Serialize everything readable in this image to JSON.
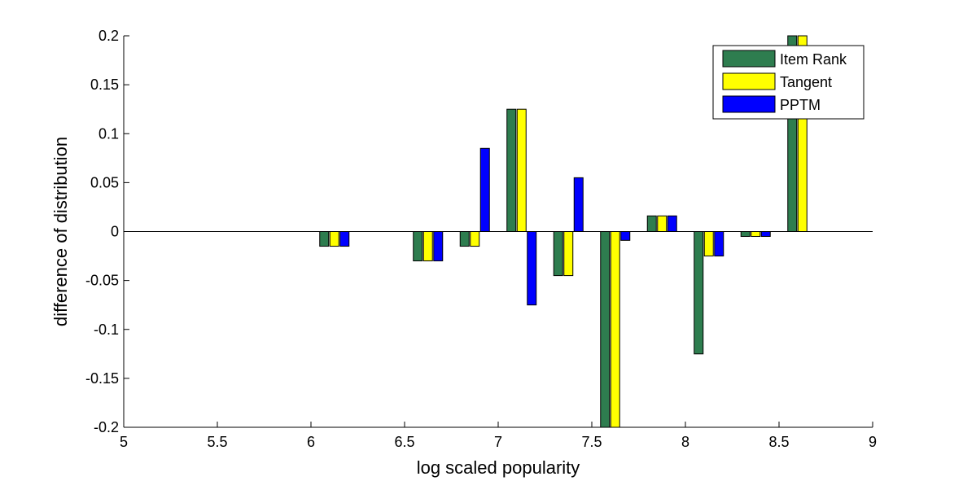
{
  "chart_data": {
    "type": "bar",
    "title": "",
    "xlabel": "log scaled popularity",
    "ylabel": "difference of distribution",
    "xlim": [
      5,
      9
    ],
    "ylim": [
      -0.2,
      0.2
    ],
    "xticks": [
      "5",
      "5.5",
      "6",
      "6.5",
      "7",
      "7.5",
      "8",
      "8.5",
      "9"
    ],
    "yticks": [
      "0.2",
      "0.15",
      "0.1",
      "0.05",
      "0",
      "-0.05",
      "-0.1",
      "-0.15",
      "-0.2"
    ],
    "legend_position": "top-right",
    "grid": false,
    "x": [
      6.125,
      6.625,
      6.875,
      7.125,
      7.375,
      7.625,
      7.875,
      8.125,
      8.375,
      8.625
    ],
    "series": [
      {
        "name": "Item Rank",
        "color": "#2e7d4f",
        "values": [
          -0.015,
          -0.03,
          -0.015,
          0.125,
          -0.045,
          -0.2,
          0.016,
          -0.125,
          -0.005,
          0.2
        ]
      },
      {
        "name": "Tangent",
        "color": "#ffff00",
        "values": [
          -0.015,
          -0.03,
          -0.015,
          0.125,
          -0.045,
          -0.2,
          0.016,
          -0.025,
          -0.005,
          0.2
        ]
      },
      {
        "name": "PPTM",
        "color": "#0000ff",
        "values": [
          -0.015,
          -0.03,
          0.085,
          -0.075,
          0.055,
          -0.009,
          0.016,
          -0.025,
          -0.005,
          0
        ]
      }
    ]
  }
}
